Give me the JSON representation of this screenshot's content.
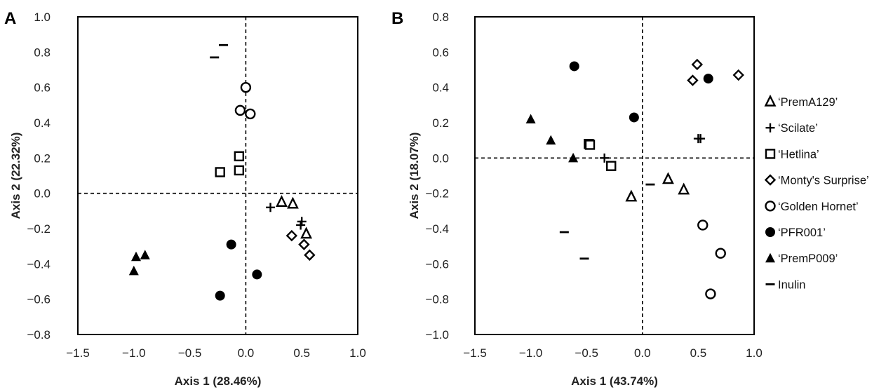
{
  "legend": {
    "placement": "right",
    "entries": [
      {
        "label": "‘PremA129’",
        "marker": "open-triangle"
      },
      {
        "label": "‘Scilate’",
        "marker": "plus"
      },
      {
        "label": "‘Hetlina’",
        "marker": "open-square"
      },
      {
        "label": "‘Monty's Surprise’",
        "marker": "open-diamond"
      },
      {
        "label": "‘Golden Hornet’",
        "marker": "open-circle"
      },
      {
        "label": "‘PFR001’",
        "marker": "filled-circle"
      },
      {
        "label": "‘PremP009’",
        "marker": "filled-triangle"
      },
      {
        "label": "Inulin",
        "marker": "dash"
      }
    ]
  },
  "chart_data": [
    {
      "panel": "A",
      "type": "scatter",
      "xlabel": "Axis 1 (28.46%)",
      "ylabel": "Axis 2 (22.32%)",
      "xlim": [
        -1.5,
        1.0
      ],
      "ylim": [
        -0.8,
        1.0
      ],
      "xticks": [
        "−1.5",
        "−1.0",
        "−0.5",
        "0.0",
        "0.5",
        "1.0"
      ],
      "yticks": [
        "−0.8",
        "−0.6",
        "−0.4",
        "−0.2",
        "0.0",
        "0.2",
        "0.4",
        "0.6",
        "0.8",
        "1.0"
      ],
      "grid": false,
      "reference_lines": {
        "x": 0,
        "y": 0,
        "style": "dashed"
      },
      "series": [
        {
          "name": "‘PremA129’",
          "points": [
            [
              0.32,
              -0.05
            ],
            [
              0.42,
              -0.06
            ],
            [
              0.54,
              -0.23
            ]
          ]
        },
        {
          "name": "‘Scilate’",
          "points": [
            [
              0.22,
              -0.08
            ],
            [
              0.49,
              -0.18
            ],
            [
              0.5,
              -0.16
            ]
          ]
        },
        {
          "name": "‘Hetlina’",
          "points": [
            [
              -0.06,
              0.21
            ],
            [
              -0.06,
              0.13
            ],
            [
              -0.23,
              0.12
            ]
          ]
        },
        {
          "name": "‘Monty's Surprise’",
          "points": [
            [
              0.41,
              -0.24
            ],
            [
              0.52,
              -0.29
            ],
            [
              0.57,
              -0.35
            ]
          ]
        },
        {
          "name": "‘Golden Hornet’",
          "points": [
            [
              0.0,
              0.6
            ],
            [
              -0.05,
              0.47
            ],
            [
              0.04,
              0.45
            ]
          ]
        },
        {
          "name": "‘PFR001’",
          "points": [
            [
              -0.13,
              -0.29
            ],
            [
              0.1,
              -0.46
            ],
            [
              -0.23,
              -0.58
            ]
          ]
        },
        {
          "name": "‘PremP009’",
          "points": [
            [
              -0.98,
              -0.36
            ],
            [
              -0.9,
              -0.35
            ],
            [
              -1.0,
              -0.44
            ]
          ]
        },
        {
          "name": "Inulin",
          "points": [
            [
              -0.2,
              0.84
            ],
            [
              -0.28,
              0.77
            ]
          ]
        }
      ]
    },
    {
      "panel": "B",
      "type": "scatter",
      "xlabel": "Axis 1 (43.74%)",
      "ylabel": "Axis 2 (18.07%)",
      "xlim": [
        -1.5,
        1.0
      ],
      "ylim": [
        -1.0,
        0.8
      ],
      "xticks": [
        "−1.5",
        "−1.0",
        "−0.5",
        "0.0",
        "0.5",
        "1.0"
      ],
      "yticks": [
        "−1.0",
        "−0.8",
        "−0.6",
        "−0.4",
        "−0.2",
        "0.0",
        "0.2",
        "0.4",
        "0.6",
        "0.8"
      ],
      "grid": false,
      "reference_lines": {
        "x": 0,
        "y": 0,
        "style": "dashed"
      },
      "series": [
        {
          "name": "‘PremA129’",
          "points": [
            [
              -0.1,
              -0.22
            ],
            [
              0.23,
              -0.12
            ],
            [
              0.37,
              -0.18
            ]
          ]
        },
        {
          "name": "‘Scilate’",
          "points": [
            [
              -0.34,
              0.0
            ],
            [
              0.5,
              0.11
            ],
            [
              0.52,
              0.11
            ]
          ]
        },
        {
          "name": "‘Hetlina’",
          "points": [
            [
              -0.48,
              0.08
            ],
            [
              -0.47,
              0.075
            ],
            [
              -0.28,
              -0.045
            ]
          ]
        },
        {
          "name": "‘Monty's Surprise’",
          "points": [
            [
              0.49,
              0.53
            ],
            [
              0.45,
              0.44
            ],
            [
              0.86,
              0.47
            ]
          ]
        },
        {
          "name": "‘Golden Hornet’",
          "points": [
            [
              0.54,
              -0.38
            ],
            [
              0.7,
              -0.54
            ],
            [
              0.61,
              -0.77
            ]
          ]
        },
        {
          "name": "‘PFR001’",
          "points": [
            [
              -0.61,
              0.52
            ],
            [
              -0.075,
              0.23
            ],
            [
              0.59,
              0.45
            ]
          ]
        },
        {
          "name": "‘PremP009’",
          "points": [
            [
              -1.0,
              0.22
            ],
            [
              -0.82,
              0.1
            ],
            [
              -0.62,
              0.0
            ]
          ]
        },
        {
          "name": "Inulin",
          "points": [
            [
              0.07,
              -0.15
            ],
            [
              -0.7,
              -0.42
            ],
            [
              -0.52,
              -0.57
            ]
          ]
        }
      ]
    }
  ]
}
